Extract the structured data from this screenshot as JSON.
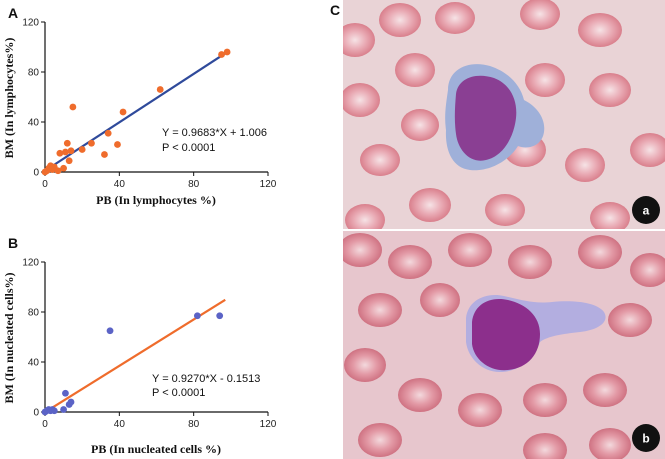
{
  "panel_letters": {
    "a": "A",
    "b": "B",
    "c": "C"
  },
  "chart_data": [
    {
      "type": "scatter",
      "panel": "A",
      "xlabel": "PB  (In lymphocytes %)",
      "ylabel": "BM  (In lymphocytes%)",
      "xlim": [
        0,
        120
      ],
      "ylim": [
        0,
        120
      ],
      "xticks": [
        0,
        40,
        80,
        120
      ],
      "yticks": [
        0,
        40,
        80,
        120
      ],
      "point_color": "#ef6c2c",
      "line_color": "#2f4a9b",
      "fit": {
        "slope": 0.9683,
        "intercept": 1.006,
        "x_range": [
          0,
          97
        ]
      },
      "equation": "Y = 0.9683*X + 1.006",
      "p_value": "P < 0.0001",
      "points": [
        {
          "x": 0,
          "y": 0
        },
        {
          "x": 1,
          "y": 1
        },
        {
          "x": 2,
          "y": 3
        },
        {
          "x": 3,
          "y": 5
        },
        {
          "x": 4,
          "y": 2
        },
        {
          "x": 5,
          "y": 4
        },
        {
          "x": 7,
          "y": 1
        },
        {
          "x": 8,
          "y": 15
        },
        {
          "x": 10,
          "y": 3
        },
        {
          "x": 11,
          "y": 16
        },
        {
          "x": 12,
          "y": 23
        },
        {
          "x": 13,
          "y": 9
        },
        {
          "x": 14,
          "y": 17
        },
        {
          "x": 15,
          "y": 52
        },
        {
          "x": 20,
          "y": 18
        },
        {
          "x": 25,
          "y": 23
        },
        {
          "x": 32,
          "y": 14
        },
        {
          "x": 34,
          "y": 31
        },
        {
          "x": 39,
          "y": 22
        },
        {
          "x": 42,
          "y": 48
        },
        {
          "x": 62,
          "y": 66
        },
        {
          "x": 95,
          "y": 94
        },
        {
          "x": 98,
          "y": 96
        }
      ]
    },
    {
      "type": "scatter",
      "panel": "B",
      "xlabel": "PB  (In nucleated cells %)",
      "ylabel": "BM  (In nucleated cells%)",
      "xlim": [
        0,
        120
      ],
      "ylim": [
        0,
        120
      ],
      "xticks": [
        0,
        40,
        80,
        120
      ],
      "yticks": [
        0,
        40,
        80,
        120
      ],
      "point_color": "#5b63c6",
      "line_color": "#ef6c2c",
      "fit": {
        "slope": 0.927,
        "intercept": -0.1513,
        "x_range": [
          0,
          97
        ]
      },
      "equation": "Y = 0.9270*X - 0.1513",
      "p_value": "P < 0.0001",
      "points": [
        {
          "x": 0,
          "y": 0
        },
        {
          "x": 1,
          "y": 1
        },
        {
          "x": 2,
          "y": 2
        },
        {
          "x": 3,
          "y": 1
        },
        {
          "x": 4,
          "y": 2
        },
        {
          "x": 5,
          "y": 1
        },
        {
          "x": 10,
          "y": 2
        },
        {
          "x": 11,
          "y": 15
        },
        {
          "x": 13,
          "y": 6
        },
        {
          "x": 14,
          "y": 8
        },
        {
          "x": 35,
          "y": 65
        },
        {
          "x": 82,
          "y": 77
        },
        {
          "x": 94,
          "y": 77
        }
      ]
    }
  ],
  "micrographs": [
    {
      "label": "a",
      "background": "#e9d3d6",
      "cell_color": "#8a3f93",
      "cytoplasm_color": "#9fb0d9",
      "badge_color": "#111111"
    },
    {
      "label": "b",
      "background": "#e7c6cd",
      "cell_color": "#8c2f8c",
      "cytoplasm_color": "#b3aee0",
      "badge_color": "#111111"
    }
  ]
}
